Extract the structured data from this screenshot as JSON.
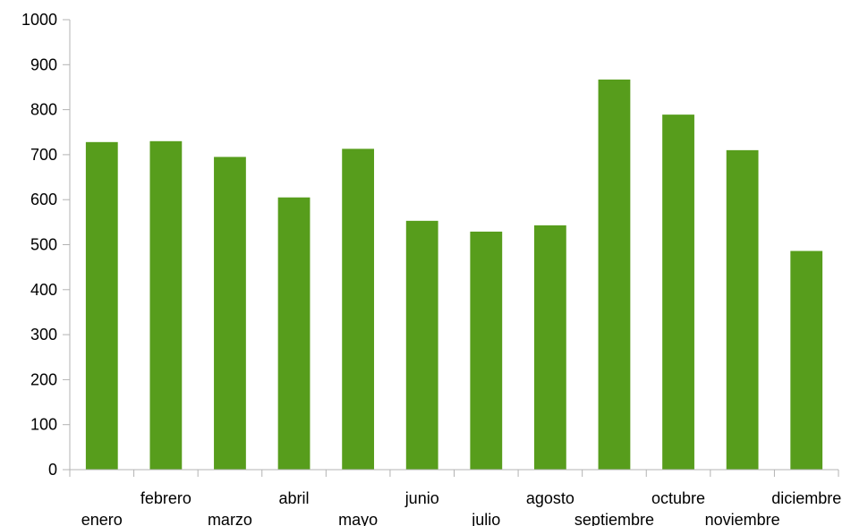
{
  "chart_data": {
    "type": "bar",
    "categories": [
      "enero",
      "febrero",
      "marzo",
      "abril",
      "mayo",
      "junio",
      "julio",
      "agosto",
      "septiembre",
      "octubre",
      "noviembre",
      "diciembre"
    ],
    "values": [
      728,
      730,
      695,
      605,
      713,
      553,
      529,
      543,
      867,
      789,
      710,
      486
    ],
    "ylim": [
      0,
      1000
    ],
    "ytick_labels": [
      "0",
      "100",
      "200",
      "300",
      "400",
      "500",
      "600",
      "700",
      "800",
      "900",
      "1000"
    ],
    "grid": false,
    "legend": "none",
    "bar_color": "#579d1c",
    "axis_color": "#b3b3b3"
  }
}
